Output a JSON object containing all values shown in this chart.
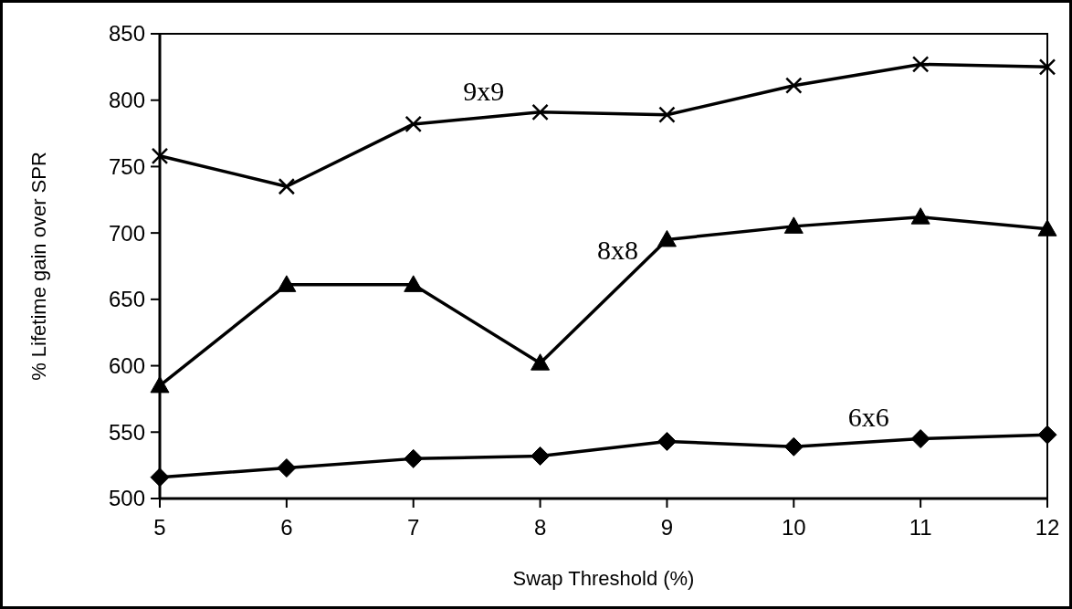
{
  "chart_data": {
    "type": "line",
    "xlabel": "Swap Threshold (%)",
    "ylabel": "% Lifetime gain over SPR",
    "x": [
      5,
      6,
      7,
      8,
      9,
      10,
      11,
      12
    ],
    "xlim": [
      5,
      12
    ],
    "xticks": [
      5,
      6,
      7,
      8,
      9,
      10,
      11,
      12
    ],
    "ylim": [
      500,
      850
    ],
    "yticks": [
      500,
      550,
      600,
      650,
      700,
      750,
      800,
      850
    ],
    "grid": false,
    "line_style": "solid",
    "series": [
      {
        "name": "9x9",
        "color": "#000000",
        "marker": "cross",
        "values": [
          758,
          735,
          782,
          791,
          789,
          811,
          827,
          825
        ]
      },
      {
        "name": "8x8",
        "color": "#000000",
        "marker": "triangle",
        "values": [
          585,
          661,
          661,
          602,
          695,
          705,
          712,
          703
        ]
      },
      {
        "name": "6x6",
        "color": "#000000",
        "marker": "diamond",
        "values": [
          516,
          523,
          530,
          532,
          543,
          539,
          545,
          548
        ]
      }
    ]
  }
}
